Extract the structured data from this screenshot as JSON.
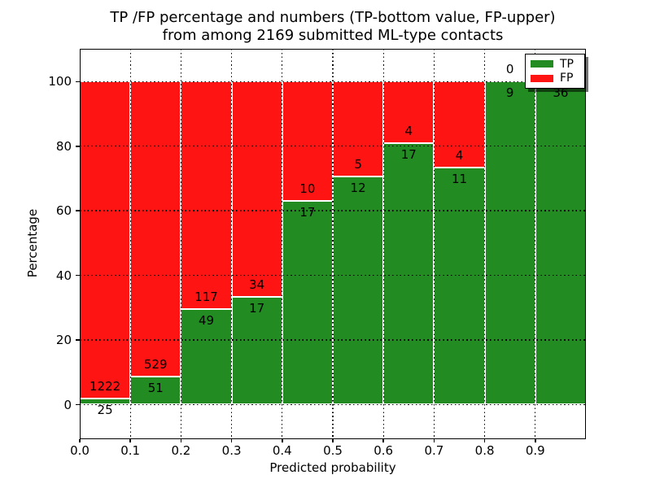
{
  "chart_data": {
    "type": "bar",
    "stacked": true,
    "normalized_to_percent": true,
    "title_line1": "TP /FP percentage and numbers (TP-bottom value, FP-upper)",
    "title_line2": "from among 2169 submitted ML-type contacts",
    "xlabel": "Predicted probability",
    "ylabel": "Percentage",
    "categories": [
      "0.0-0.1",
      "0.1-0.2",
      "0.2-0.3",
      "0.3-0.4",
      "0.4-0.5",
      "0.5-0.6",
      "0.6-0.7",
      "0.7-0.8",
      "0.8-0.9",
      "0.9-1.0"
    ],
    "x_tick_labels": [
      "0.0",
      "0.1",
      "0.2",
      "0.3",
      "0.4",
      "0.5",
      "0.6",
      "0.7",
      "0.8",
      "0.9"
    ],
    "y_ticks": [
      0,
      20,
      40,
      60,
      80,
      100
    ],
    "y_tick_labels": [
      "0",
      "20",
      "40",
      "60",
      "80",
      "100"
    ],
    "ylim_percent": [
      0,
      100
    ],
    "bin_width": 0.1,
    "total_contacts": 2169,
    "grid": "dotted black, x and y",
    "legend_position": "upper right",
    "series": [
      {
        "name": "TP",
        "color": "#228b22",
        "values": [
          25,
          51,
          49,
          17,
          17,
          12,
          17,
          11,
          9,
          36
        ]
      },
      {
        "name": "FP",
        "color": "#ff1414",
        "values": [
          1222,
          529,
          117,
          34,
          10,
          5,
          4,
          4,
          0,
          0
        ]
      }
    ],
    "tp_percent_by_bin": [
      2.0,
      8.8,
      29.5,
      33.3,
      63.0,
      70.6,
      81.0,
      73.3,
      100.0,
      100.0
    ]
  }
}
